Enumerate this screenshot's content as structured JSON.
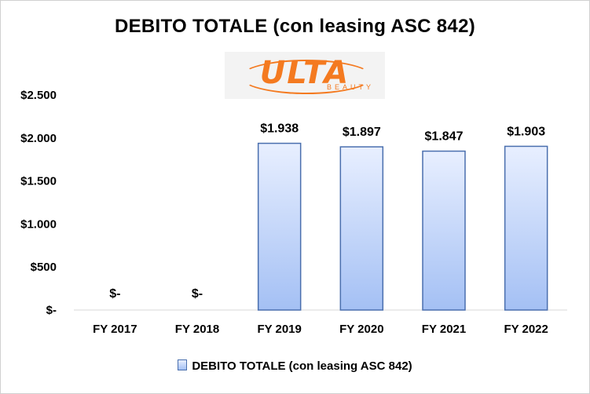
{
  "chart_data": {
    "type": "bar",
    "title": "DEBITO TOTALE (con leasing ASC 842)",
    "categories": [
      "FY 2017",
      "FY 2018",
      "FY 2019",
      "FY 2020",
      "FY 2021",
      "FY 2022"
    ],
    "series": [
      {
        "name": "DEBITO TOTALE (con leasing ASC 842)",
        "values": [
          0,
          0,
          1938,
          1897,
          1847,
          1903
        ],
        "data_labels": [
          "$-",
          "$-",
          "$1.938",
          "$1.897",
          "$1.847",
          "$1.903"
        ]
      }
    ],
    "yticks": [
      0,
      500,
      1000,
      1500,
      2000,
      2500
    ],
    "ytick_labels": [
      "$-",
      "$500",
      "$1.000",
      "$1.500",
      "$2.000",
      "$2.500"
    ],
    "ylim": [
      0,
      2500
    ],
    "xlabel": "",
    "ylabel": "",
    "grid": false,
    "legend": "bottom",
    "colors": {
      "bar_top": "#e8efff",
      "bar_bottom": "#a4c0f4",
      "bar_border": "#4a6fae"
    }
  },
  "logo": {
    "text": "ULTA",
    "subtext": "BEAUTY",
    "color": "#f47a20"
  }
}
